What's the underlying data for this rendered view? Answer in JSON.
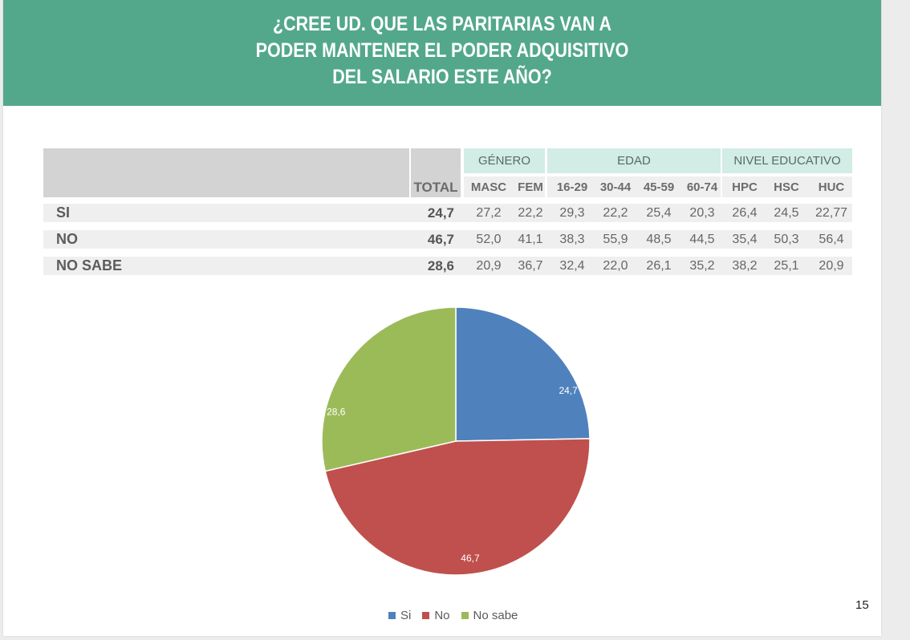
{
  "title": "¿CREE UD. QUE LAS PARITARIAS VAN A\nPODER MANTENER EL PODER ADQUISITIVO\nDEL SALARIO ESTE AÑO?",
  "table": {
    "total_header": "TOTAL",
    "groups": [
      {
        "label": "GÉNERO",
        "columns": [
          "MASC",
          "FEM"
        ]
      },
      {
        "label": "EDAD",
        "columns": [
          "16-29",
          "30-44",
          "45-59",
          "60-74"
        ]
      },
      {
        "label": "NIVEL EDUCATIVO",
        "columns": [
          "HPC",
          "HSC",
          "HUC"
        ]
      }
    ],
    "rows": [
      {
        "label": "SI",
        "total": "24,7",
        "values": [
          "27,2",
          "22,2",
          "29,3",
          "22,2",
          "25,4",
          "20,3",
          "26,4",
          "24,5",
          "22,77"
        ]
      },
      {
        "label": "NO",
        "total": "46,7",
        "values": [
          "52,0",
          "41,1",
          "38,3",
          "55,9",
          "48,5",
          "44,5",
          "35,4",
          "50,3",
          "56,4"
        ]
      },
      {
        "label": "NO SABE",
        "total": "28,6",
        "values": [
          "20,9",
          "36,7",
          "32,4",
          "22,0",
          "26,1",
          "35,2",
          "38,2",
          "25,1",
          "20,9"
        ]
      }
    ]
  },
  "chart_data": {
    "type": "pie",
    "title": "",
    "legend_position": "bottom",
    "slices": [
      {
        "label": "Si",
        "value": 24.7,
        "display": "24,7",
        "color": "#4f81bd"
      },
      {
        "label": "No",
        "value": 46.7,
        "display": "46,7",
        "color": "#c0504d"
      },
      {
        "label": "No sabe",
        "value": 28.6,
        "display": "28,6",
        "color": "#9bbb59"
      }
    ]
  },
  "page_number": "15"
}
